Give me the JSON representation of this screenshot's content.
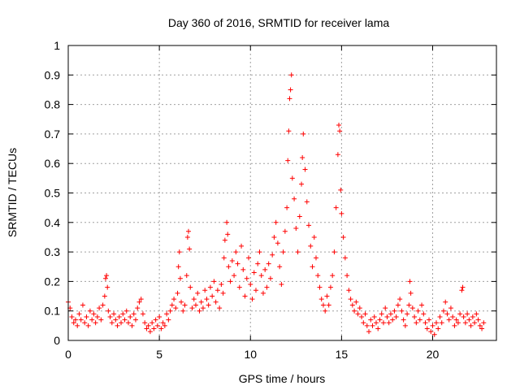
{
  "chart_data": {
    "type": "scatter",
    "title": "Day 360 of 2016, SRMTID for receiver lama",
    "xlabel": "GPS time / hours",
    "ylabel": "SRMTID / TECUs",
    "xlim": [
      0,
      23.5
    ],
    "ylim": [
      0,
      1
    ],
    "xticks": [
      0,
      5,
      10,
      15,
      20
    ],
    "yticks": [
      0,
      0.1,
      0.2,
      0.3,
      0.4,
      0.5,
      0.6,
      0.7,
      0.8,
      0.9,
      1
    ],
    "xtick_labels": [
      "0",
      "5",
      "10",
      "15",
      "20"
    ],
    "ytick_labels": [
      "0",
      "0.1",
      "0.2",
      "0.3",
      "0.4",
      "0.5",
      "0.6",
      "0.7",
      "0.8",
      "0.9",
      "1"
    ],
    "grid": true,
    "marker": "+",
    "color": "#ff0000",
    "series": [
      {
        "name": "SRMTID",
        "points": [
          [
            0.0,
            0.13
          ],
          [
            0.1,
            0.11
          ],
          [
            0.2,
            0.08
          ],
          [
            0.3,
            0.06
          ],
          [
            0.4,
            0.07
          ],
          [
            0.5,
            0.05
          ],
          [
            0.6,
            0.09
          ],
          [
            0.7,
            0.07
          ],
          [
            0.8,
            0.12
          ],
          [
            0.9,
            0.06
          ],
          [
            1.0,
            0.08
          ],
          [
            1.1,
            0.05
          ],
          [
            1.2,
            0.1
          ],
          [
            1.3,
            0.07
          ],
          [
            1.4,
            0.09
          ],
          [
            1.5,
            0.06
          ],
          [
            1.6,
            0.08
          ],
          [
            1.7,
            0.11
          ],
          [
            1.8,
            0.07
          ],
          [
            1.9,
            0.12
          ],
          [
            2.0,
            0.15
          ],
          [
            2.05,
            0.21
          ],
          [
            2.1,
            0.22
          ],
          [
            2.15,
            0.18
          ],
          [
            2.2,
            0.1
          ],
          [
            2.3,
            0.08
          ],
          [
            2.4,
            0.06
          ],
          [
            2.5,
            0.09
          ],
          [
            2.6,
            0.07
          ],
          [
            2.7,
            0.05
          ],
          [
            2.8,
            0.08
          ],
          [
            2.9,
            0.06
          ],
          [
            3.0,
            0.09
          ],
          [
            3.1,
            0.07
          ],
          [
            3.2,
            0.1
          ],
          [
            3.3,
            0.06
          ],
          [
            3.4,
            0.08
          ],
          [
            3.5,
            0.05
          ],
          [
            3.6,
            0.09
          ],
          [
            3.7,
            0.07
          ],
          [
            3.8,
            0.11
          ],
          [
            3.9,
            0.13
          ],
          [
            4.0,
            0.14
          ],
          [
            4.1,
            0.09
          ],
          [
            4.2,
            0.06
          ],
          [
            4.3,
            0.04
          ],
          [
            4.4,
            0.05
          ],
          [
            4.5,
            0.03
          ],
          [
            4.6,
            0.06
          ],
          [
            4.7,
            0.04
          ],
          [
            4.8,
            0.07
          ],
          [
            4.9,
            0.05
          ],
          [
            5.0,
            0.08
          ],
          [
            5.1,
            0.04
          ],
          [
            5.2,
            0.06
          ],
          [
            5.3,
            0.05
          ],
          [
            5.4,
            0.09
          ],
          [
            5.5,
            0.07
          ],
          [
            5.6,
            0.1
          ],
          [
            5.7,
            0.12
          ],
          [
            5.8,
            0.14
          ],
          [
            5.9,
            0.11
          ],
          [
            6.0,
            0.16
          ],
          [
            6.05,
            0.25
          ],
          [
            6.1,
            0.3
          ],
          [
            6.15,
            0.21
          ],
          [
            6.2,
            0.13
          ],
          [
            6.3,
            0.1
          ],
          [
            6.4,
            0.12
          ],
          [
            6.5,
            0.22
          ],
          [
            6.55,
            0.35
          ],
          [
            6.6,
            0.37
          ],
          [
            6.65,
            0.31
          ],
          [
            6.7,
            0.18
          ],
          [
            6.8,
            0.11
          ],
          [
            6.9,
            0.14
          ],
          [
            7.0,
            0.12
          ],
          [
            7.1,
            0.16
          ],
          [
            7.2,
            0.1
          ],
          [
            7.3,
            0.13
          ],
          [
            7.4,
            0.11
          ],
          [
            7.5,
            0.17
          ],
          [
            7.6,
            0.14
          ],
          [
            7.7,
            0.12
          ],
          [
            7.8,
            0.18
          ],
          [
            7.9,
            0.15
          ],
          [
            8.0,
            0.2
          ],
          [
            8.1,
            0.13
          ],
          [
            8.2,
            0.17
          ],
          [
            8.3,
            0.11
          ],
          [
            8.4,
            0.19
          ],
          [
            8.5,
            0.16
          ],
          [
            8.55,
            0.28
          ],
          [
            8.6,
            0.34
          ],
          [
            8.7,
            0.4
          ],
          [
            8.75,
            0.36
          ],
          [
            8.8,
            0.25
          ],
          [
            8.9,
            0.2
          ],
          [
            9.0,
            0.27
          ],
          [
            9.1,
            0.22
          ],
          [
            9.2,
            0.3
          ],
          [
            9.3,
            0.26
          ],
          [
            9.4,
            0.18
          ],
          [
            9.5,
            0.32
          ],
          [
            9.6,
            0.24
          ],
          [
            9.7,
            0.15
          ],
          [
            9.8,
            0.21
          ],
          [
            9.9,
            0.28
          ],
          [
            10.0,
            0.19
          ],
          [
            10.1,
            0.14
          ],
          [
            10.2,
            0.23
          ],
          [
            10.3,
            0.17
          ],
          [
            10.4,
            0.26
          ],
          [
            10.5,
            0.3
          ],
          [
            10.6,
            0.22
          ],
          [
            10.7,
            0.16
          ],
          [
            10.8,
            0.24
          ],
          [
            10.9,
            0.18
          ],
          [
            11.0,
            0.26
          ],
          [
            11.1,
            0.21
          ],
          [
            11.2,
            0.29
          ],
          [
            11.3,
            0.35
          ],
          [
            11.4,
            0.4
          ],
          [
            11.5,
            0.33
          ],
          [
            11.6,
            0.25
          ],
          [
            11.7,
            0.19
          ],
          [
            11.8,
            0.3
          ],
          [
            11.9,
            0.37
          ],
          [
            12.0,
            0.45
          ],
          [
            12.05,
            0.61
          ],
          [
            12.1,
            0.71
          ],
          [
            12.15,
            0.82
          ],
          [
            12.2,
            0.85
          ],
          [
            12.25,
            0.9
          ],
          [
            12.3,
            0.55
          ],
          [
            12.4,
            0.48
          ],
          [
            12.5,
            0.38
          ],
          [
            12.6,
            0.3
          ],
          [
            12.7,
            0.42
          ],
          [
            12.8,
            0.53
          ],
          [
            12.85,
            0.62
          ],
          [
            12.9,
            0.7
          ],
          [
            13.0,
            0.58
          ],
          [
            13.1,
            0.47
          ],
          [
            13.2,
            0.39
          ],
          [
            13.3,
            0.32
          ],
          [
            13.4,
            0.25
          ],
          [
            13.5,
            0.35
          ],
          [
            13.6,
            0.28
          ],
          [
            13.7,
            0.22
          ],
          [
            13.8,
            0.18
          ],
          [
            13.9,
            0.14
          ],
          [
            14.0,
            0.12
          ],
          [
            14.1,
            0.1
          ],
          [
            14.2,
            0.15
          ],
          [
            14.3,
            0.12
          ],
          [
            14.4,
            0.18
          ],
          [
            14.5,
            0.22
          ],
          [
            14.6,
            0.3
          ],
          [
            14.7,
            0.45
          ],
          [
            14.8,
            0.63
          ],
          [
            14.85,
            0.73
          ],
          [
            14.9,
            0.71
          ],
          [
            14.95,
            0.51
          ],
          [
            15.0,
            0.43
          ],
          [
            15.1,
            0.35
          ],
          [
            15.2,
            0.28
          ],
          [
            15.3,
            0.22
          ],
          [
            15.4,
            0.17
          ],
          [
            15.5,
            0.14
          ],
          [
            15.6,
            0.12
          ],
          [
            15.7,
            0.1
          ],
          [
            15.8,
            0.13
          ],
          [
            15.9,
            0.09
          ],
          [
            16.0,
            0.11
          ],
          [
            16.1,
            0.08
          ],
          [
            16.2,
            0.06
          ],
          [
            16.3,
            0.09
          ],
          [
            16.4,
            0.05
          ],
          [
            16.5,
            0.03
          ],
          [
            16.6,
            0.07
          ],
          [
            16.7,
            0.05
          ],
          [
            16.8,
            0.08
          ],
          [
            16.9,
            0.06
          ],
          [
            17.0,
            0.04
          ],
          [
            17.1,
            0.07
          ],
          [
            17.2,
            0.09
          ],
          [
            17.3,
            0.06
          ],
          [
            17.4,
            0.11
          ],
          [
            17.5,
            0.08
          ],
          [
            17.6,
            0.06
          ],
          [
            17.7,
            0.09
          ],
          [
            17.8,
            0.07
          ],
          [
            17.9,
            0.1
          ],
          [
            18.0,
            0.08
          ],
          [
            18.1,
            0.12
          ],
          [
            18.2,
            0.14
          ],
          [
            18.3,
            0.1
          ],
          [
            18.4,
            0.07
          ],
          [
            18.5,
            0.05
          ],
          [
            18.6,
            0.09
          ],
          [
            18.7,
            0.12
          ],
          [
            18.75,
            0.2
          ],
          [
            18.8,
            0.16
          ],
          [
            18.9,
            0.11
          ],
          [
            19.0,
            0.08
          ],
          [
            19.1,
            0.06
          ],
          [
            19.2,
            0.1
          ],
          [
            19.3,
            0.07
          ],
          [
            19.4,
            0.12
          ],
          [
            19.5,
            0.09
          ],
          [
            19.6,
            0.06
          ],
          [
            19.7,
            0.04
          ],
          [
            19.8,
            0.07
          ],
          [
            19.9,
            0.03
          ],
          [
            20.0,
            0.05
          ],
          [
            20.1,
            0.02
          ],
          [
            20.2,
            0.06
          ],
          [
            20.3,
            0.04
          ],
          [
            20.4,
            0.08
          ],
          [
            20.5,
            0.06
          ],
          [
            20.6,
            0.1
          ],
          [
            20.7,
            0.13
          ],
          [
            20.8,
            0.09
          ],
          [
            20.9,
            0.07
          ],
          [
            21.0,
            0.11
          ],
          [
            21.1,
            0.08
          ],
          [
            21.2,
            0.05
          ],
          [
            21.3,
            0.07
          ],
          [
            21.4,
            0.06
          ],
          [
            21.5,
            0.09
          ],
          [
            21.6,
            0.17
          ],
          [
            21.65,
            0.18
          ],
          [
            21.7,
            0.08
          ],
          [
            21.8,
            0.06
          ],
          [
            21.9,
            0.09
          ],
          [
            22.0,
            0.07
          ],
          [
            22.1,
            0.05
          ],
          [
            22.2,
            0.08
          ],
          [
            22.3,
            0.06
          ],
          [
            22.4,
            0.09
          ],
          [
            22.5,
            0.07
          ],
          [
            22.6,
            0.05
          ],
          [
            22.7,
            0.04
          ],
          [
            22.8,
            0.06
          ]
        ]
      }
    ]
  }
}
